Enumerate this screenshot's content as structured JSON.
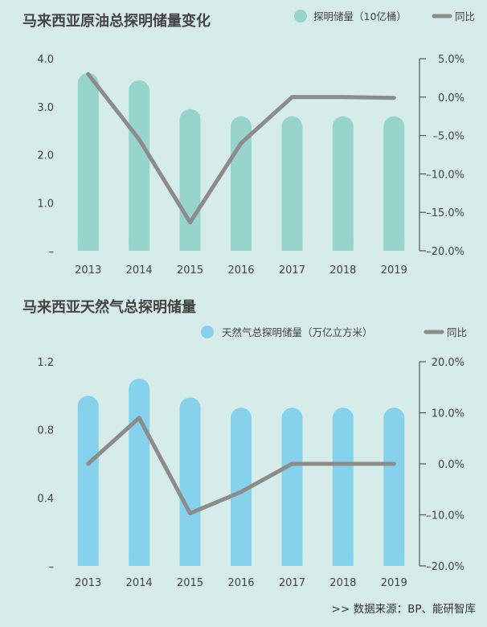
{
  "colors": {
    "background": "#d6ece8",
    "oil_bar": "#97d4cc",
    "gas_bar": "#86d1ec",
    "line": "#8c8c8c",
    "axis": "#555555"
  },
  "source_text": ">>  数据来源：BP、能研智库",
  "chart_data": [
    {
      "type": "bar+line",
      "title": "马来西亚原油总探明储量变化",
      "categories": [
        "2013",
        "2014",
        "2015",
        "2016",
        "2017",
        "2018",
        "2019"
      ],
      "series": [
        {
          "name": "探明储量（10亿桶）",
          "kind": "bar",
          "axis": "left",
          "values": [
            3.7,
            3.55,
            2.95,
            2.8,
            2.8,
            2.8,
            2.8
          ]
        },
        {
          "name": "同比",
          "kind": "line",
          "axis": "right",
          "values": [
            3.0,
            -5.5,
            -16.3,
            -6.0,
            0.0,
            0.0,
            -0.1
          ]
        }
      ],
      "left_axis": {
        "min": 0,
        "max": 4.0,
        "ticks": [
          "–",
          "1.0",
          "2.0",
          "3.0",
          "4.0"
        ]
      },
      "right_axis": {
        "min": -20,
        "max": 5,
        "ticks": [
          "–20.0%",
          "–15.0%",
          "–10.0%",
          "–5.0%",
          "0.0%",
          "5.0%"
        ]
      }
    },
    {
      "type": "bar+line",
      "title": "马来西亚天然气总探明储量",
      "categories": [
        "2013",
        "2014",
        "2015",
        "2016",
        "2017",
        "2018",
        "2019"
      ],
      "series": [
        {
          "name": "天然气总探明储量（万亿立方米）",
          "kind": "bar",
          "axis": "left",
          "values": [
            1.0,
            1.1,
            0.99,
            0.93,
            0.93,
            0.93,
            0.93
          ]
        },
        {
          "name": "同比",
          "kind": "line",
          "axis": "right",
          "values": [
            0.0,
            9.0,
            -9.7,
            -5.5,
            0.0,
            0.0,
            0.0
          ]
        }
      ],
      "left_axis": {
        "min": 0,
        "max": 1.2,
        "ticks": [
          "–",
          "0.4",
          "0.8",
          "1.2"
        ]
      },
      "right_axis": {
        "min": -20,
        "max": 20,
        "ticks": [
          "–20.0%",
          "–10.0%",
          "0.0%",
          "10.0%",
          "20.0%"
        ]
      }
    }
  ]
}
